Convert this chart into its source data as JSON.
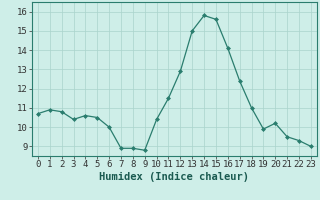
{
  "x": [
    0,
    1,
    2,
    3,
    4,
    5,
    6,
    7,
    8,
    9,
    10,
    11,
    12,
    13,
    14,
    15,
    16,
    17,
    18,
    19,
    20,
    21,
    22,
    23
  ],
  "y": [
    10.7,
    10.9,
    10.8,
    10.4,
    10.6,
    10.5,
    10.0,
    8.9,
    8.9,
    8.8,
    10.4,
    11.5,
    12.9,
    15.0,
    15.8,
    15.6,
    14.1,
    12.4,
    11.0,
    9.9,
    10.2,
    9.5,
    9.3,
    9.0
  ],
  "line_color": "#2a7d6e",
  "marker": "D",
  "marker_size": 2.0,
  "bg_color": "#ceeee8",
  "grid_color": "#aad4cc",
  "xlabel": "Humidex (Indice chaleur)",
  "ylim": [
    8.5,
    16.5
  ],
  "xlim": [
    -0.5,
    23.5
  ],
  "yticks": [
    9,
    10,
    11,
    12,
    13,
    14,
    15,
    16
  ],
  "xticks": [
    0,
    1,
    2,
    3,
    4,
    5,
    6,
    7,
    8,
    9,
    10,
    11,
    12,
    13,
    14,
    15,
    16,
    17,
    18,
    19,
    20,
    21,
    22,
    23
  ],
  "tick_fontsize": 6.5,
  "xlabel_fontsize": 7.5
}
